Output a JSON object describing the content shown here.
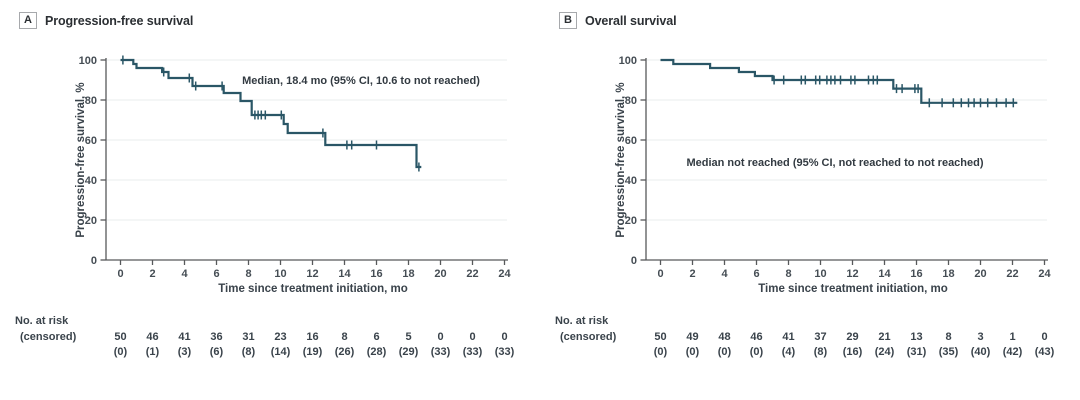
{
  "figure": {
    "colors": {
      "curve": "#2a5666",
      "axis": "#57595b",
      "grid": "#eaecee",
      "text": "#3a434b"
    },
    "panels": [
      {
        "tag": "A",
        "title": "Progression-free survival",
        "annotation": "Median, 18.4 mo (95% CI, 10.6 to not reached)",
        "ylabel": "Progression-free survival, %",
        "xlabel": "Time since treatment initiation, mo",
        "risk_label": "No. at risk",
        "censored_label": "(censored)"
      },
      {
        "tag": "B",
        "title": "Overall survival",
        "annotation": "Median not reached (95% CI, not reached to not reached)",
        "ylabel": "Progression-free survival, %",
        "xlabel": "Time since treatment initiation, mo",
        "risk_label": "No. at risk",
        "censored_label": "(censored)"
      }
    ]
  },
  "chart_data": [
    {
      "type": "line",
      "subtype": "kaplan-meier-step",
      "title": "Progression-free survival",
      "xlabel": "Time since treatment initiation, mo",
      "ylabel": "Progression-free survival, %",
      "annotation": "Median, 18.4 mo (95% CI, 10.6 to not reached)",
      "xlim": [
        0,
        24
      ],
      "ylim": [
        0,
        100
      ],
      "xticks": [
        0,
        2,
        4,
        6,
        8,
        10,
        12,
        14,
        16,
        18,
        20,
        22,
        24
      ],
      "yticks": [
        0,
        20,
        40,
        60,
        80,
        100
      ],
      "grid": "horizontal-light",
      "legend": "none",
      "start": [
        0,
        100
      ],
      "steps": [
        [
          0.8,
          98
        ],
        [
          1.0,
          96
        ],
        [
          2.6,
          94
        ],
        [
          3.0,
          91
        ],
        [
          4.5,
          87
        ],
        [
          6.45,
          83.5
        ],
        [
          7.5,
          79.5
        ],
        [
          8.2,
          72.5
        ],
        [
          10.2,
          68
        ],
        [
          10.45,
          63.5
        ],
        [
          12.8,
          57.5
        ],
        [
          18.5,
          46.5
        ]
      ],
      "end_time": 18.8,
      "censors": [
        [
          0.15,
          100
        ],
        [
          2.7,
          94
        ],
        [
          4.3,
          91
        ],
        [
          4.7,
          87
        ],
        [
          6.35,
          87
        ],
        [
          8.4,
          72.5
        ],
        [
          8.6,
          72.5
        ],
        [
          8.8,
          72.5
        ],
        [
          9.05,
          72.5
        ],
        [
          10.05,
          72.5
        ],
        [
          12.65,
          63.5
        ],
        [
          14.15,
          57.5
        ],
        [
          14.45,
          57.5
        ],
        [
          16.0,
          57.5
        ],
        [
          18.65,
          46.5
        ]
      ],
      "at_risk": {
        "times": [
          0,
          2,
          4,
          6,
          8,
          10,
          12,
          14,
          16,
          18,
          20,
          22,
          24
        ],
        "n": [
          50,
          46,
          41,
          36,
          31,
          23,
          16,
          8,
          6,
          5,
          0,
          0,
          0
        ],
        "censored": [
          0,
          1,
          3,
          6,
          8,
          14,
          19,
          26,
          28,
          29,
          33,
          33,
          33
        ]
      }
    },
    {
      "type": "line",
      "subtype": "kaplan-meier-step",
      "title": "Overall survival",
      "xlabel": "Time since treatment initiation, mo",
      "ylabel": "Progression-free survival, %",
      "annotation": "Median not reached (95% CI, not reached to not reached)",
      "xlim": [
        0,
        24
      ],
      "ylim": [
        0,
        100
      ],
      "xticks": [
        0,
        2,
        4,
        6,
        8,
        10,
        12,
        14,
        16,
        18,
        20,
        22,
        24
      ],
      "yticks": [
        0,
        20,
        40,
        60,
        80,
        100
      ],
      "grid": "horizontal-light",
      "legend": "none",
      "start": [
        0,
        100
      ],
      "steps": [
        [
          0.8,
          98
        ],
        [
          3.1,
          96
        ],
        [
          4.9,
          94
        ],
        [
          5.9,
          92
        ],
        [
          7.0,
          90
        ],
        [
          14.55,
          85.7
        ],
        [
          16.3,
          78.6
        ]
      ],
      "end_time": 22.3,
      "censors": [
        [
          7.1,
          90
        ],
        [
          7.7,
          90
        ],
        [
          8.8,
          90
        ],
        [
          9.05,
          90
        ],
        [
          9.7,
          90
        ],
        [
          9.95,
          90
        ],
        [
          10.4,
          90
        ],
        [
          10.65,
          90
        ],
        [
          10.9,
          90
        ],
        [
          11.25,
          90
        ],
        [
          11.9,
          90
        ],
        [
          12.15,
          90
        ],
        [
          13.0,
          90
        ],
        [
          13.3,
          90
        ],
        [
          13.55,
          90
        ],
        [
          14.75,
          85.7
        ],
        [
          15.1,
          85.7
        ],
        [
          15.9,
          85.7
        ],
        [
          16.1,
          85.7
        ],
        [
          16.8,
          78.6
        ],
        [
          17.6,
          78.6
        ],
        [
          18.3,
          78.6
        ],
        [
          18.8,
          78.6
        ],
        [
          19.25,
          78.6
        ],
        [
          19.6,
          78.6
        ],
        [
          20.0,
          78.6
        ],
        [
          20.45,
          78.6
        ],
        [
          21.0,
          78.6
        ],
        [
          21.6,
          78.6
        ],
        [
          22.05,
          78.6
        ]
      ],
      "at_risk": {
        "times": [
          0,
          2,
          4,
          6,
          8,
          10,
          12,
          14,
          16,
          18,
          20,
          22,
          24
        ],
        "n": [
          50,
          49,
          48,
          46,
          41,
          37,
          29,
          21,
          13,
          8,
          3,
          1,
          0
        ],
        "censored": [
          0,
          0,
          0,
          0,
          4,
          8,
          16,
          24,
          31,
          35,
          40,
          42,
          43
        ]
      }
    }
  ]
}
